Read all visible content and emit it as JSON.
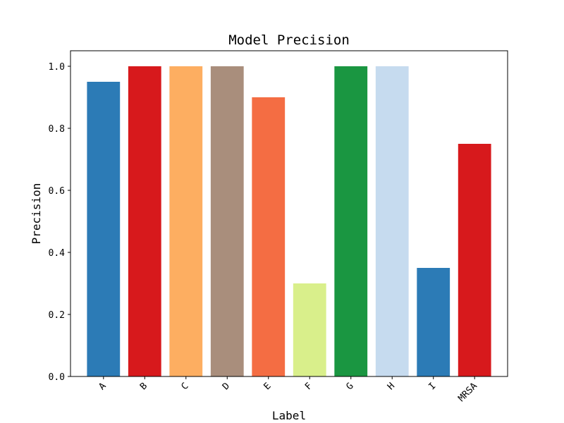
{
  "chart_data": {
    "type": "bar",
    "title": "Model Precision",
    "xlabel": "Label",
    "ylabel": "Precision",
    "categories": [
      "A",
      "B",
      "C",
      "D",
      "E",
      "F",
      "G",
      "H",
      "I",
      "MRSA"
    ],
    "values": [
      0.95,
      1.0,
      1.0,
      1.0,
      0.9,
      0.3,
      1.0,
      1.0,
      0.35,
      0.75
    ],
    "colors": [
      "#2c7bb6",
      "#d7191c",
      "#fdae61",
      "#a98e7c",
      "#f46d43",
      "#d9ef8b",
      "#1a9641",
      "#c6dbef",
      "#2c7bb6",
      "#d7191c"
    ],
    "ylim": [
      0,
      1.05
    ],
    "yticks": [
      "0.0",
      "0.2",
      "0.4",
      "0.6",
      "0.8",
      "1.0"
    ],
    "grid": false,
    "legend": false
  }
}
